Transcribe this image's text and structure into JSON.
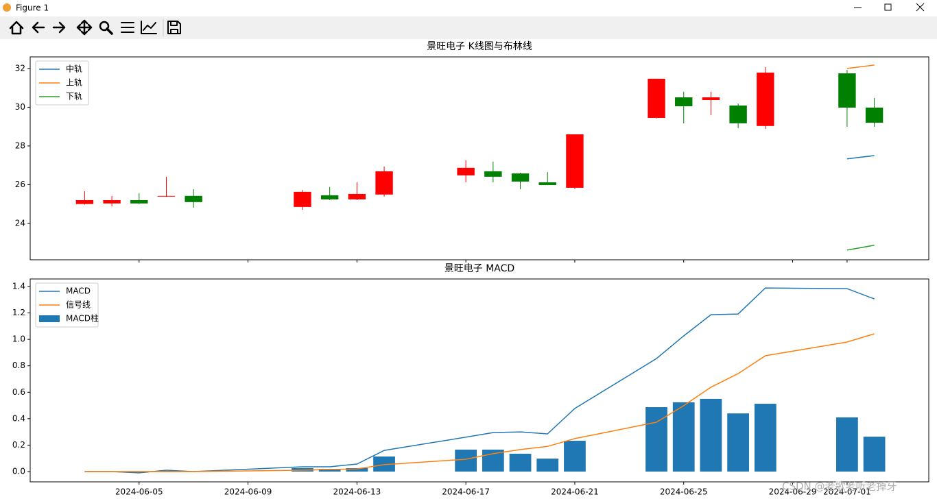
{
  "window": {
    "title": "Figure 1"
  },
  "watermark": "CSDN @老歌老听老掉牙",
  "chart_data": [
    {
      "type": "candlestick",
      "title": "景旺电子 K线图与布林线",
      "x": [
        "2024-06-03",
        "2024-06-04",
        "2024-06-05",
        "2024-06-06",
        "2024-06-07",
        "2024-06-11",
        "2024-06-12",
        "2024-06-13",
        "2024-06-14",
        "2024-06-17",
        "2024-06-18",
        "2024-06-19",
        "2024-06-20",
        "2024-06-21",
        "2024-06-24",
        "2024-06-25",
        "2024-06-26",
        "2024-06-27",
        "2024-06-28",
        "2024-07-01",
        "2024-07-02"
      ],
      "open": [
        25.0,
        25.03,
        25.2,
        25.4,
        25.42,
        24.85,
        25.45,
        25.24,
        25.49,
        26.48,
        26.69,
        26.58,
        26.12,
        25.84,
        29.45,
        30.51,
        30.37,
        30.09,
        29.03,
        31.75,
        29.98
      ],
      "high": [
        25.66,
        25.42,
        25.56,
        26.4,
        25.77,
        25.73,
        25.88,
        26.12,
        26.94,
        27.26,
        27.19,
        26.62,
        26.65,
        28.6,
        31.47,
        30.8,
        30.8,
        30.19,
        32.07,
        31.93,
        30.48
      ],
      "low": [
        24.97,
        24.88,
        25.0,
        25.38,
        24.81,
        24.7,
        25.2,
        25.2,
        25.38,
        26.12,
        26.12,
        25.77,
        25.98,
        25.77,
        29.42,
        29.17,
        29.59,
        28.92,
        28.88,
        28.99,
        28.99
      ],
      "close": [
        25.2,
        25.2,
        25.03,
        25.42,
        25.1,
        25.63,
        25.24,
        25.52,
        26.69,
        26.87,
        26.41,
        26.16,
        25.98,
        28.6,
        31.47,
        30.05,
        30.51,
        29.17,
        31.79,
        29.98,
        29.2
      ],
      "up_color": "#ff0000",
      "down_color": "#008000",
      "series": [
        {
          "name": "中轨",
          "color": "#1f77b4",
          "values": [
            null,
            null,
            null,
            null,
            null,
            null,
            null,
            null,
            null,
            null,
            null,
            null,
            null,
            null,
            null,
            null,
            null,
            null,
            null,
            27.33,
            27.5
          ]
        },
        {
          "name": "上轨",
          "color": "#ff7f0e",
          "values": [
            null,
            null,
            null,
            null,
            null,
            null,
            null,
            null,
            null,
            null,
            null,
            null,
            null,
            null,
            null,
            null,
            null,
            null,
            null,
            32.0,
            32.18
          ]
        },
        {
          "name": "下轨",
          "color": "#2ca02c",
          "values": [
            null,
            null,
            null,
            null,
            null,
            null,
            null,
            null,
            null,
            null,
            null,
            null,
            null,
            null,
            null,
            null,
            null,
            null,
            null,
            22.62,
            22.87
          ]
        }
      ],
      "xlim": [
        "2024-06-01",
        "2024-07-04"
      ],
      "xticks": [
        "2024-06-05",
        "2024-06-09",
        "2024-06-13",
        "2024-06-17",
        "2024-06-21",
        "2024-06-25",
        "2024-06-29",
        "2024-07-01"
      ],
      "xtick_labels": false,
      "ylim": [
        22.12,
        32.6
      ],
      "yticks": [
        24,
        26,
        28,
        30,
        32
      ],
      "legend": "upper left",
      "grid": false
    },
    {
      "type": "combo",
      "title": "景旺电子 MACD",
      "x": [
        "2024-06-03",
        "2024-06-04",
        "2024-06-05",
        "2024-06-06",
        "2024-06-07",
        "2024-06-11",
        "2024-06-12",
        "2024-06-13",
        "2024-06-14",
        "2024-06-17",
        "2024-06-18",
        "2024-06-19",
        "2024-06-20",
        "2024-06-21",
        "2024-06-24",
        "2024-06-25",
        "2024-06-26",
        "2024-06-27",
        "2024-06-28",
        "2024-07-01",
        "2024-07-02"
      ],
      "series": [
        {
          "name": "MACD",
          "type": "line",
          "color": "#1f77b4",
          "values": [
            0.0,
            0.0,
            -0.01,
            0.01,
            0.0,
            0.036,
            0.036,
            0.057,
            0.16,
            0.26,
            0.295,
            0.3,
            0.285,
            0.477,
            0.855,
            1.026,
            1.187,
            1.192,
            1.389,
            1.384,
            1.306
          ]
        },
        {
          "name": "信号线",
          "type": "line",
          "color": "#ff7f0e",
          "values": [
            0.0,
            0.0,
            0.0,
            0.0,
            0.0,
            0.01,
            0.016,
            0.02,
            0.052,
            0.093,
            0.135,
            0.166,
            0.19,
            0.249,
            0.373,
            0.498,
            0.638,
            0.741,
            0.876,
            0.98,
            1.042
          ]
        },
        {
          "name": "MACD柱",
          "type": "bar",
          "color": "#1f77b4",
          "values": [
            0.0,
            0.0,
            -0.005,
            0.005,
            0.0,
            0.026,
            0.02,
            0.026,
            0.114,
            0.166,
            0.166,
            0.135,
            0.098,
            0.233,
            0.487,
            0.524,
            0.55,
            0.44,
            0.513,
            0.41,
            0.264
          ]
        }
      ],
      "xlim": [
        "2024-06-01",
        "2024-07-04"
      ],
      "xticks": [
        "2024-06-05",
        "2024-06-09",
        "2024-06-13",
        "2024-06-17",
        "2024-06-21",
        "2024-06-25",
        "2024-06-29",
        "2024-07-01"
      ],
      "xtick_labels": true,
      "ylim": [
        -0.078,
        1.457
      ],
      "yticks": [
        {
          "value": 0.0,
          "label": "0.0"
        },
        0.2,
        0.4,
        0.6,
        0.8,
        {
          "value": 1.0,
          "label": "1.0"
        },
        1.2,
        1.4
      ],
      "legend": "upper left",
      "grid": false
    }
  ]
}
